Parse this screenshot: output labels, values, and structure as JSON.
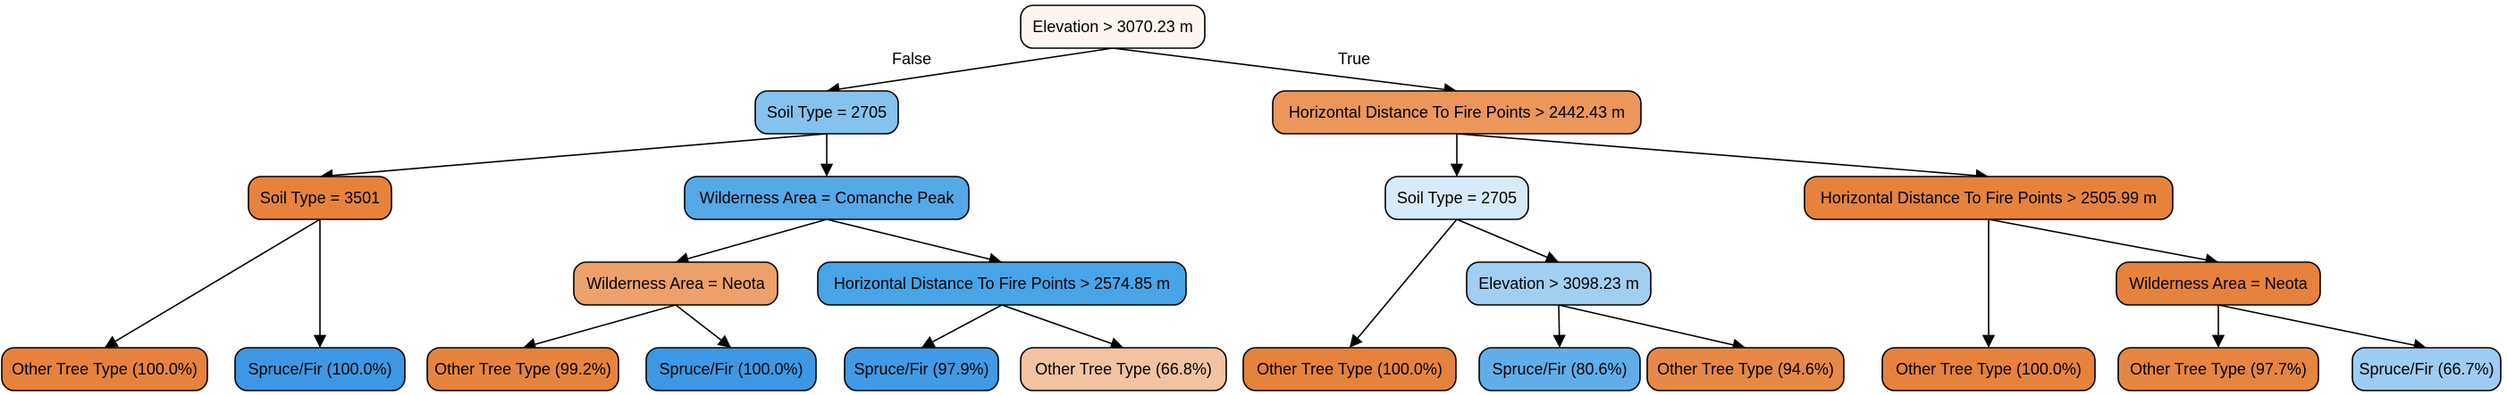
{
  "tree": {
    "nodes": [
      {
        "id": "root",
        "label": "Elevation > 3070.23 m",
        "fill": "#fdf5ef"
      },
      {
        "id": "n_false",
        "label": "Soil Type = 2705",
        "fill": "#85c2ee"
      },
      {
        "id": "n_true",
        "label": "Horizontal Distance To Fire Points > 2442.43 m",
        "fill": "#eb965b"
      },
      {
        "id": "n_soil3501",
        "label": "Soil Type = 3501",
        "fill": "#e6823c"
      },
      {
        "id": "n_wild_comanche",
        "label": "Wilderness Area = Comanche Peak",
        "fill": "#55a9e8"
      },
      {
        "id": "n_soil2705_b",
        "label": "Soil Type = 2705",
        "fill": "#d7eaf9"
      },
      {
        "id": "n_hdfp_2505",
        "label": "Horizontal Distance To Fire Points > 2505.99 m",
        "fill": "#e6823c"
      },
      {
        "id": "n_wild_neota_a",
        "label": "Wilderness Area = Neota",
        "fill": "#eea06a"
      },
      {
        "id": "n_hdfp_2574",
        "label": "Horizontal Distance To Fire Points > 2574.85 m",
        "fill": "#47a4e7"
      },
      {
        "id": "n_elev_3098",
        "label": "Elevation > 3098.23 m",
        "fill": "#a1cff2"
      },
      {
        "id": "n_wild_neota_b",
        "label": "Wilderness Area = Neota",
        "fill": "#e6823c"
      },
      {
        "id": "l1",
        "label": "Other Tree Type (100.0%)",
        "fill": "#e6823c"
      },
      {
        "id": "l2",
        "label": "Spruce/Fir (100.0%)",
        "fill": "#3c98e5"
      },
      {
        "id": "l3",
        "label": "Other Tree Type (99.2%)",
        "fill": "#e6843d"
      },
      {
        "id": "l4",
        "label": "Spruce/Fir (100.0%)",
        "fill": "#3c98e5"
      },
      {
        "id": "l5",
        "label": "Spruce/Fir (97.9%)",
        "fill": "#409ae6"
      },
      {
        "id": "l6",
        "label": "Other Tree Type (66.8%)",
        "fill": "#f3c3a1"
      },
      {
        "id": "l7",
        "label": "Other Tree Type (100.0%)",
        "fill": "#e6823c"
      },
      {
        "id": "l8",
        "label": "Spruce/Fir (80.6%)",
        "fill": "#60aee9"
      },
      {
        "id": "l9",
        "label": "Other Tree Type (94.6%)",
        "fill": "#e78946"
      },
      {
        "id": "l10",
        "label": "Other Tree Type (100.0%)",
        "fill": "#e6823c"
      },
      {
        "id": "l11",
        "label": "Other Tree Type (97.7%)",
        "fill": "#e68540"
      },
      {
        "id": "l12",
        "label": "Spruce/Fir (66.7%)",
        "fill": "#9dccf2"
      }
    ],
    "edges": [
      {
        "from": "root",
        "to": "n_false",
        "label": "False"
      },
      {
        "from": "root",
        "to": "n_true",
        "label": "True"
      },
      {
        "from": "n_false",
        "to": "n_soil3501",
        "label": ""
      },
      {
        "from": "n_false",
        "to": "n_wild_comanche",
        "label": ""
      },
      {
        "from": "n_true",
        "to": "n_soil2705_b",
        "label": ""
      },
      {
        "from": "n_true",
        "to": "n_hdfp_2505",
        "label": ""
      },
      {
        "from": "n_soil3501",
        "to": "l1",
        "label": ""
      },
      {
        "from": "n_soil3501",
        "to": "l2",
        "label": ""
      },
      {
        "from": "n_wild_comanche",
        "to": "n_wild_neota_a",
        "label": ""
      },
      {
        "from": "n_wild_comanche",
        "to": "n_hdfp_2574",
        "label": ""
      },
      {
        "from": "n_soil2705_b",
        "to": "l7",
        "label": ""
      },
      {
        "from": "n_soil2705_b",
        "to": "n_elev_3098",
        "label": ""
      },
      {
        "from": "n_hdfp_2505",
        "to": "l10",
        "label": ""
      },
      {
        "from": "n_hdfp_2505",
        "to": "n_wild_neota_b",
        "label": ""
      },
      {
        "from": "n_wild_neota_a",
        "to": "l3",
        "label": ""
      },
      {
        "from": "n_wild_neota_a",
        "to": "l4",
        "label": ""
      },
      {
        "from": "n_hdfp_2574",
        "to": "l5",
        "label": ""
      },
      {
        "from": "n_hdfp_2574",
        "to": "l6",
        "label": ""
      },
      {
        "from": "n_elev_3098",
        "to": "l8",
        "label": ""
      },
      {
        "from": "n_elev_3098",
        "to": "l9",
        "label": ""
      },
      {
        "from": "n_wild_neota_b",
        "to": "l11",
        "label": ""
      },
      {
        "from": "n_wild_neota_b",
        "to": "l12",
        "label": ""
      }
    ]
  }
}
